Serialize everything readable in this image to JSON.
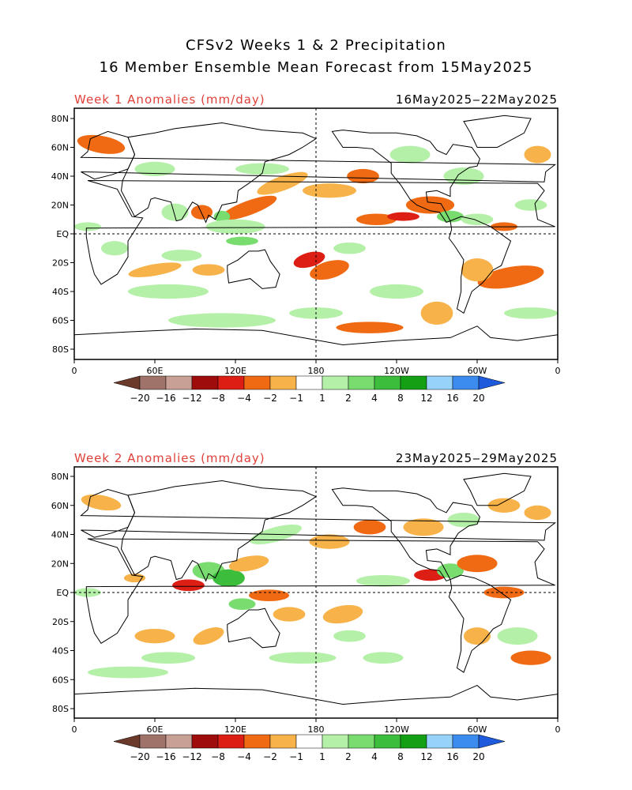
{
  "header": {
    "title_line1": "CFSv2 Weeks 1 & 2 Precipitation",
    "title_line2": "16 Member Ensemble Mean Forecast from 15May2025"
  },
  "panels": [
    {
      "label": "Week 1 Anomalies (mm/day)",
      "dates": "16May2025‒22May2025"
    },
    {
      "label": "Week 2 Anomalies (mm/day)",
      "dates": "23May2025‒29May2025"
    }
  ],
  "axes": {
    "lat_ticks": [
      "80N",
      "60N",
      "40N",
      "20N",
      "EQ",
      "20S",
      "40S",
      "60S",
      "80S"
    ],
    "lon_ticks": [
      "0",
      "60E",
      "120E",
      "180",
      "120W",
      "60W",
      "0"
    ]
  },
  "colorbar": {
    "labels": [
      "−20",
      "−16",
      "−12",
      "−8",
      "−4",
      "−2",
      "−1",
      "1",
      "2",
      "4",
      "8",
      "12",
      "16",
      "20"
    ],
    "colors": [
      "#6b3a2a",
      "#a0736a",
      "#c8a096",
      "#9e0c0c",
      "#dc1e14",
      "#f06a14",
      "#f7b34a",
      "#ffffff",
      "#b4f0a8",
      "#78dc6e",
      "#3cbe3c",
      "#14a014",
      "#96d2fa",
      "#3c8cf0",
      "#1e5adc"
    ]
  },
  "colors": {
    "wet_light": "#b4f0a8",
    "wet_mid": "#78dc6e",
    "wet_dark": "#3cbe3c",
    "wet_blue": "#3c8cf0",
    "dry_light": "#f7b34a",
    "dry_mid": "#f06a14",
    "dry_dark": "#dc1e14"
  }
}
